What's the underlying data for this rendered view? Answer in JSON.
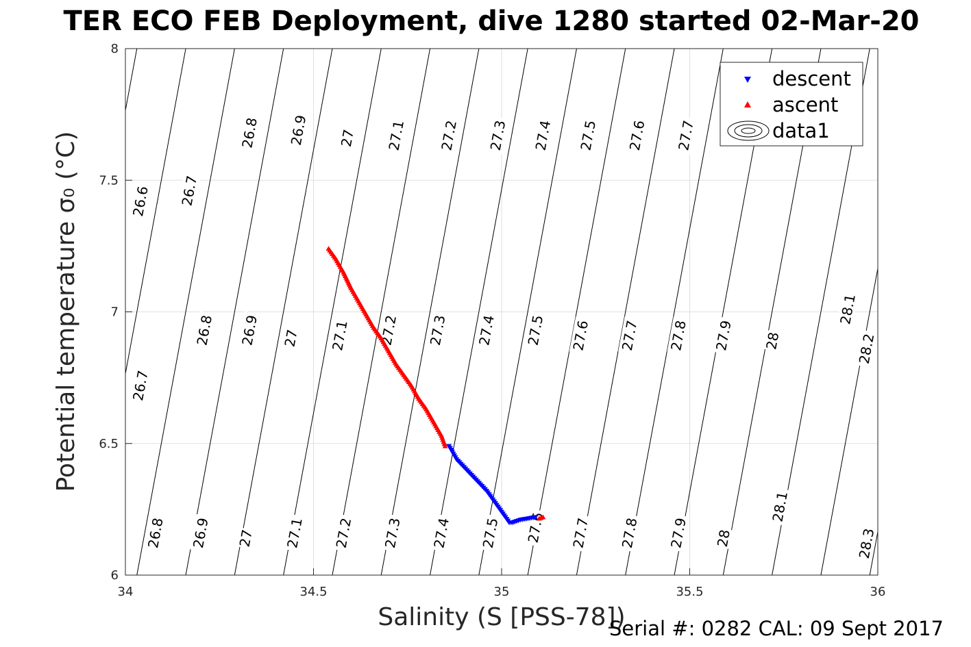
{
  "chart_data": {
    "type": "scatter",
    "title": "TER ECO FEB Deployment, dive 1280 started 02-Mar-20",
    "xlabel": "Salinity (S [PSS-78])",
    "ylabel": "Potential temperature σ₀ (°C)",
    "xlim": [
      34,
      36
    ],
    "ylim": [
      6,
      8
    ],
    "xticks": [
      34,
      34.5,
      35,
      35.5,
      36
    ],
    "xtick_labels": [
      "34",
      "34.5",
      "35",
      "35.5",
      "36"
    ],
    "yticks": [
      6,
      6.5,
      7,
      7.5,
      8
    ],
    "ytick_labels": [
      "6",
      "6.5",
      "7",
      "7.5",
      "8"
    ],
    "grid": true,
    "legend_position": "top-right",
    "legend": [
      "descent",
      "ascent",
      "data1"
    ],
    "density_contours": {
      "levels": [
        26.6,
        26.7,
        26.8,
        26.9,
        27,
        27.1,
        27.2,
        27.3,
        27.4,
        27.5,
        27.6,
        27.7,
        27.8,
        27.9,
        28,
        28.1,
        28.2,
        28.3
      ],
      "labels": [
        {
          "text": "26.6",
          "x": 34.04,
          "T": 7.42
        },
        {
          "text": "26.7",
          "x": 34.17,
          "T": 7.46
        },
        {
          "text": "26.8",
          "x": 34.33,
          "T": 7.68
        },
        {
          "text": "26.9",
          "x": 34.46,
          "T": 7.69
        },
        {
          "text": "27",
          "x": 34.59,
          "T": 7.66
        },
        {
          "text": "27.1",
          "x": 34.72,
          "T": 7.67
        },
        {
          "text": "27.2",
          "x": 34.86,
          "T": 7.67
        },
        {
          "text": "27.3",
          "x": 34.99,
          "T": 7.67
        },
        {
          "text": "27.4",
          "x": 35.11,
          "T": 7.67
        },
        {
          "text": "27.5",
          "x": 35.23,
          "T": 7.67
        },
        {
          "text": "27.6",
          "x": 35.36,
          "T": 7.67
        },
        {
          "text": "27.7",
          "x": 35.49,
          "T": 7.67
        },
        {
          "text": "26.8",
          "x": 34.21,
          "T": 6.93
        },
        {
          "text": "26.9",
          "x": 34.33,
          "T": 6.93
        },
        {
          "text": "27",
          "x": 34.44,
          "T": 6.9
        },
        {
          "text": "27.1",
          "x": 34.57,
          "T": 6.91
        },
        {
          "text": "27.2",
          "x": 34.7,
          "T": 6.93
        },
        {
          "text": "27.3",
          "x": 34.83,
          "T": 6.93
        },
        {
          "text": "27.4",
          "x": 34.96,
          "T": 6.93
        },
        {
          "text": "27.5",
          "x": 35.09,
          "T": 6.93
        },
        {
          "text": "27.6",
          "x": 35.21,
          "T": 6.91
        },
        {
          "text": "27.7",
          "x": 35.34,
          "T": 6.91
        },
        {
          "text": "27.8",
          "x": 35.47,
          "T": 6.91
        },
        {
          "text": "27.9",
          "x": 35.59,
          "T": 6.91
        },
        {
          "text": "28",
          "x": 35.72,
          "T": 6.89
        },
        {
          "text": "28.1",
          "x": 35.92,
          "T": 7.01
        },
        {
          "text": "28.2",
          "x": 35.97,
          "T": 6.86
        },
        {
          "text": "26.7",
          "x": 34.04,
          "T": 6.72
        },
        {
          "text": "26.8",
          "x": 34.08,
          "T": 6.16
        },
        {
          "text": "26.9",
          "x": 34.2,
          "T": 6.16
        },
        {
          "text": "27",
          "x": 34.32,
          "T": 6.14
        },
        {
          "text": "27.1",
          "x": 34.45,
          "T": 6.16
        },
        {
          "text": "27.2",
          "x": 34.58,
          "T": 6.16
        },
        {
          "text": "27.3",
          "x": 34.71,
          "T": 6.16
        },
        {
          "text": "27.4",
          "x": 34.84,
          "T": 6.16
        },
        {
          "text": "27.5",
          "x": 34.97,
          "T": 6.16
        },
        {
          "text": "27.6",
          "x": 35.09,
          "T": 6.18
        },
        {
          "text": "27.7",
          "x": 35.21,
          "T": 6.16
        },
        {
          "text": "27.8",
          "x": 35.34,
          "T": 6.16
        },
        {
          "text": "27.9",
          "x": 35.47,
          "T": 6.16
        },
        {
          "text": "28",
          "x": 35.59,
          "T": 6.14
        },
        {
          "text": "28.1",
          "x": 35.74,
          "T": 6.26
        },
        {
          "text": "28.3",
          "x": 35.97,
          "T": 6.12
        }
      ]
    },
    "series": [
      {
        "name": "descent",
        "color": "#0000ff",
        "marker": "triangle-down",
        "x": [
          34.86,
          34.88,
          34.9,
          34.92,
          34.94,
          34.96,
          34.98,
          35.0,
          35.01,
          35.02,
          35.03,
          35.05,
          35.07,
          35.09
        ],
        "y": [
          6.49,
          6.44,
          6.41,
          6.38,
          6.35,
          6.32,
          6.28,
          6.24,
          6.22,
          6.2,
          6.2,
          6.21,
          6.215,
          6.22
        ]
      },
      {
        "name": "ascent",
        "color": "#ff0000",
        "marker": "triangle-up",
        "x": [
          34.54,
          34.56,
          34.58,
          34.6,
          34.62,
          34.64,
          34.66,
          34.68,
          34.7,
          34.72,
          34.74,
          34.76,
          34.78,
          34.8,
          34.82,
          34.84,
          34.85,
          35.1,
          35.11
        ],
        "y": [
          7.24,
          7.2,
          7.15,
          7.09,
          7.04,
          6.99,
          6.94,
          6.9,
          6.85,
          6.8,
          6.76,
          6.72,
          6.67,
          6.63,
          6.58,
          6.53,
          6.49,
          6.215,
          6.22
        ]
      }
    ]
  },
  "footer": {
    "serial_cal": "Serial #: 0282  CAL: 09 Sept 2017"
  }
}
